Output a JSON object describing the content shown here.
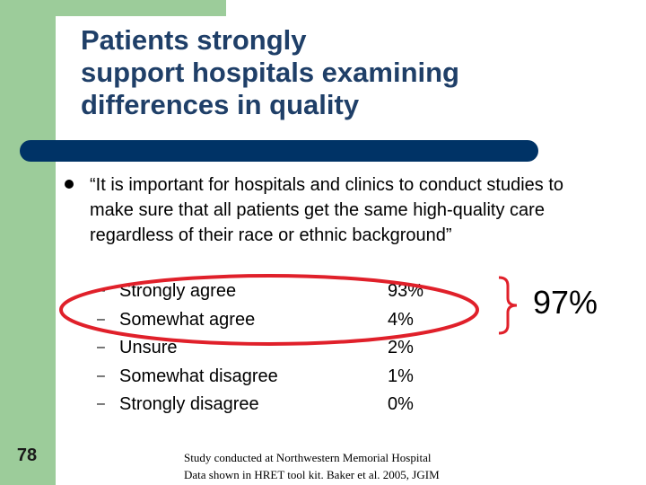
{
  "title": "Patients strongly\nsupport hospitals examining\ndifferences in quality",
  "quote": "“It is important for hospitals and clinics to conduct studies to make sure that all patients get the same high-quality care regardless of their race or ethnic background”",
  "responses": [
    {
      "label": "Strongly agree",
      "pct": "93%"
    },
    {
      "label": "Somewhat agree",
      "pct": "4%"
    },
    {
      "label": "Unsure",
      "pct": "2%"
    },
    {
      "label": "Somewhat disagree",
      "pct": "1%"
    },
    {
      "label": "Strongly disagree",
      "pct": "0%"
    }
  ],
  "dash_glyph": "–",
  "callout": "97%",
  "slide_number": "78",
  "footnote": {
    "line1": "Study conducted at Northwestern Memorial Hospital",
    "line2": "Data shown in HRET tool kit. Baker et al. 2005, JGIM"
  },
  "colors": {
    "title": "#1f3f68",
    "band": "#9ccc9a",
    "title_bar": "#003366",
    "highlight": "#e0202a"
  }
}
